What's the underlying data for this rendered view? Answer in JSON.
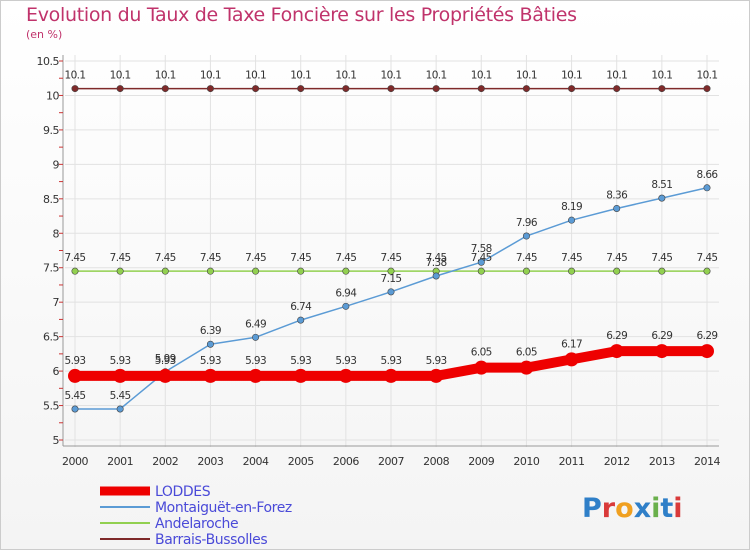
{
  "chart_data": {
    "type": "line",
    "title": "Evolution du Taux de Taxe Foncière sur les Propriétés Bâties",
    "subtitle": "(en %)",
    "xlabel": "",
    "ylabel": "(en %)",
    "ylim": [
      5,
      10.5
    ],
    "yticks": [
      "5",
      "5.5",
      "6",
      "6.5",
      "7",
      "7.5",
      "8",
      "8.5",
      "9",
      "9.5",
      "10",
      "10.5"
    ],
    "x": [
      "2000",
      "2001",
      "2002",
      "2003",
      "2004",
      "2005",
      "2006",
      "2007",
      "2008",
      "2009",
      "2010",
      "2011",
      "2012",
      "2013",
      "2014"
    ],
    "grid": true,
    "legend_position": "bottom-left",
    "series": [
      {
        "name": "LODDES",
        "color": "#ee0000",
        "values": [
          5.93,
          5.93,
          5.93,
          5.93,
          5.93,
          5.93,
          5.93,
          5.93,
          5.93,
          6.05,
          6.05,
          6.17,
          6.29,
          6.29,
          6.29
        ],
        "labels": [
          "5.93",
          "5.93",
          "5.93",
          "5.93",
          "5.93",
          "5.93",
          "5.93",
          "5.93",
          "5.93",
          "6.05",
          "6.05",
          "6.17",
          "6.29",
          "6.29",
          "6.29"
        ]
      },
      {
        "name": "Montaiguët-en-Forez",
        "color": "#5b9bd5",
        "values": [
          5.45,
          5.45,
          5.99,
          6.39,
          6.49,
          6.74,
          6.94,
          7.15,
          7.38,
          7.58,
          7.96,
          8.19,
          8.36,
          8.51,
          8.66
        ],
        "labels": [
          "5.45",
          "5.45",
          "5.99",
          "6.39",
          "6.49",
          "6.74",
          "6.94",
          "7.15",
          "7.38",
          "7.58",
          "7.96",
          "8.19",
          "8.36",
          "8.51",
          "8.66"
        ]
      },
      {
        "name": "Andelaroche",
        "color": "#92d050",
        "values": [
          7.45,
          7.45,
          7.45,
          7.45,
          7.45,
          7.45,
          7.45,
          7.45,
          7.45,
          7.45,
          7.45,
          7.45,
          7.45,
          7.45,
          7.45
        ],
        "labels": [
          "7.45",
          "7.45",
          "7.45",
          "7.45",
          "7.45",
          "7.45",
          "7.45",
          "7.45",
          "7.45",
          "7.45",
          "7.45",
          "7.45",
          "7.45",
          "7.45",
          "7.45"
        ]
      },
      {
        "name": "Barrais-Bussolles",
        "color": "#7f2a2a",
        "values": [
          10.1,
          10.1,
          10.1,
          10.1,
          10.1,
          10.1,
          10.1,
          10.1,
          10.1,
          10.1,
          10.1,
          10.1,
          10.1,
          10.1,
          10.1
        ],
        "labels": [
          "10.1",
          "10.1",
          "10.1",
          "10.1",
          "10.1",
          "10.1",
          "10.1",
          "10.1",
          "10.1",
          "10.1",
          "10.1",
          "10.1",
          "10.1",
          "10.1",
          "10.1"
        ]
      }
    ]
  },
  "brand": {
    "letters": [
      "P",
      "r",
      "o",
      "x",
      "i",
      "t",
      "i"
    ]
  }
}
